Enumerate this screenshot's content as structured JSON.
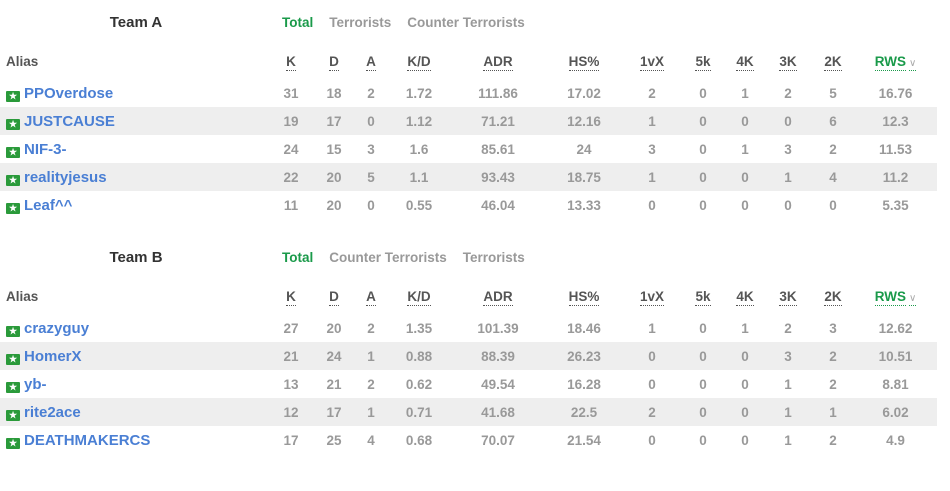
{
  "columns": [
    "Alias",
    "K",
    "D",
    "A",
    "K/D",
    "ADR",
    "HS%",
    "1vX",
    "5k",
    "4K",
    "3K",
    "2K",
    "RWS"
  ],
  "teams": [
    {
      "name": "Team A",
      "tabs": [
        "Total",
        "Terrorists",
        "Counter Terrorists"
      ],
      "rows": [
        [
          "PPOverdose",
          "31",
          "18",
          "2",
          "1.72",
          "111.86",
          "17.02",
          "2",
          "0",
          "1",
          "2",
          "5",
          "16.76"
        ],
        [
          "JUSTCAUSE",
          "19",
          "17",
          "0",
          "1.12",
          "71.21",
          "12.16",
          "1",
          "0",
          "0",
          "0",
          "6",
          "12.3"
        ],
        [
          "NIF-3-",
          "24",
          "15",
          "3",
          "1.6",
          "85.61",
          "24",
          "3",
          "0",
          "1",
          "3",
          "2",
          "11.53"
        ],
        [
          "realityjesus",
          "22",
          "20",
          "5",
          "1.1",
          "93.43",
          "18.75",
          "1",
          "0",
          "0",
          "1",
          "4",
          "11.2"
        ],
        [
          "Leaf^^",
          "11",
          "20",
          "0",
          "0.55",
          "46.04",
          "13.33",
          "0",
          "0",
          "0",
          "0",
          "0",
          "5.35"
        ]
      ]
    },
    {
      "name": "Team B",
      "tabs": [
        "Total",
        "Counter Terrorists",
        "Terrorists"
      ],
      "rows": [
        [
          "crazyguy",
          "27",
          "20",
          "2",
          "1.35",
          "101.39",
          "18.46",
          "1",
          "0",
          "1",
          "2",
          "3",
          "12.62"
        ],
        [
          "HomerX",
          "21",
          "24",
          "1",
          "0.88",
          "88.39",
          "26.23",
          "0",
          "0",
          "0",
          "3",
          "2",
          "10.51"
        ],
        [
          "yb-",
          "13",
          "21",
          "2",
          "0.62",
          "49.54",
          "16.28",
          "0",
          "0",
          "0",
          "1",
          "2",
          "8.81"
        ],
        [
          "rite2ace",
          "12",
          "17",
          "1",
          "0.71",
          "41.68",
          "22.5",
          "2",
          "0",
          "0",
          "1",
          "1",
          "6.02"
        ],
        [
          "DEATHMAKERCS",
          "17",
          "25",
          "4",
          "0.68",
          "70.07",
          "21.54",
          "0",
          "0",
          "0",
          "1",
          "2",
          "4.9"
        ]
      ]
    }
  ],
  "colors": {
    "accent": "#1a9a4a",
    "link": "#4a7fd4",
    "flag": "#2a9a3a"
  },
  "sort_icon": "chevron-down-icon"
}
